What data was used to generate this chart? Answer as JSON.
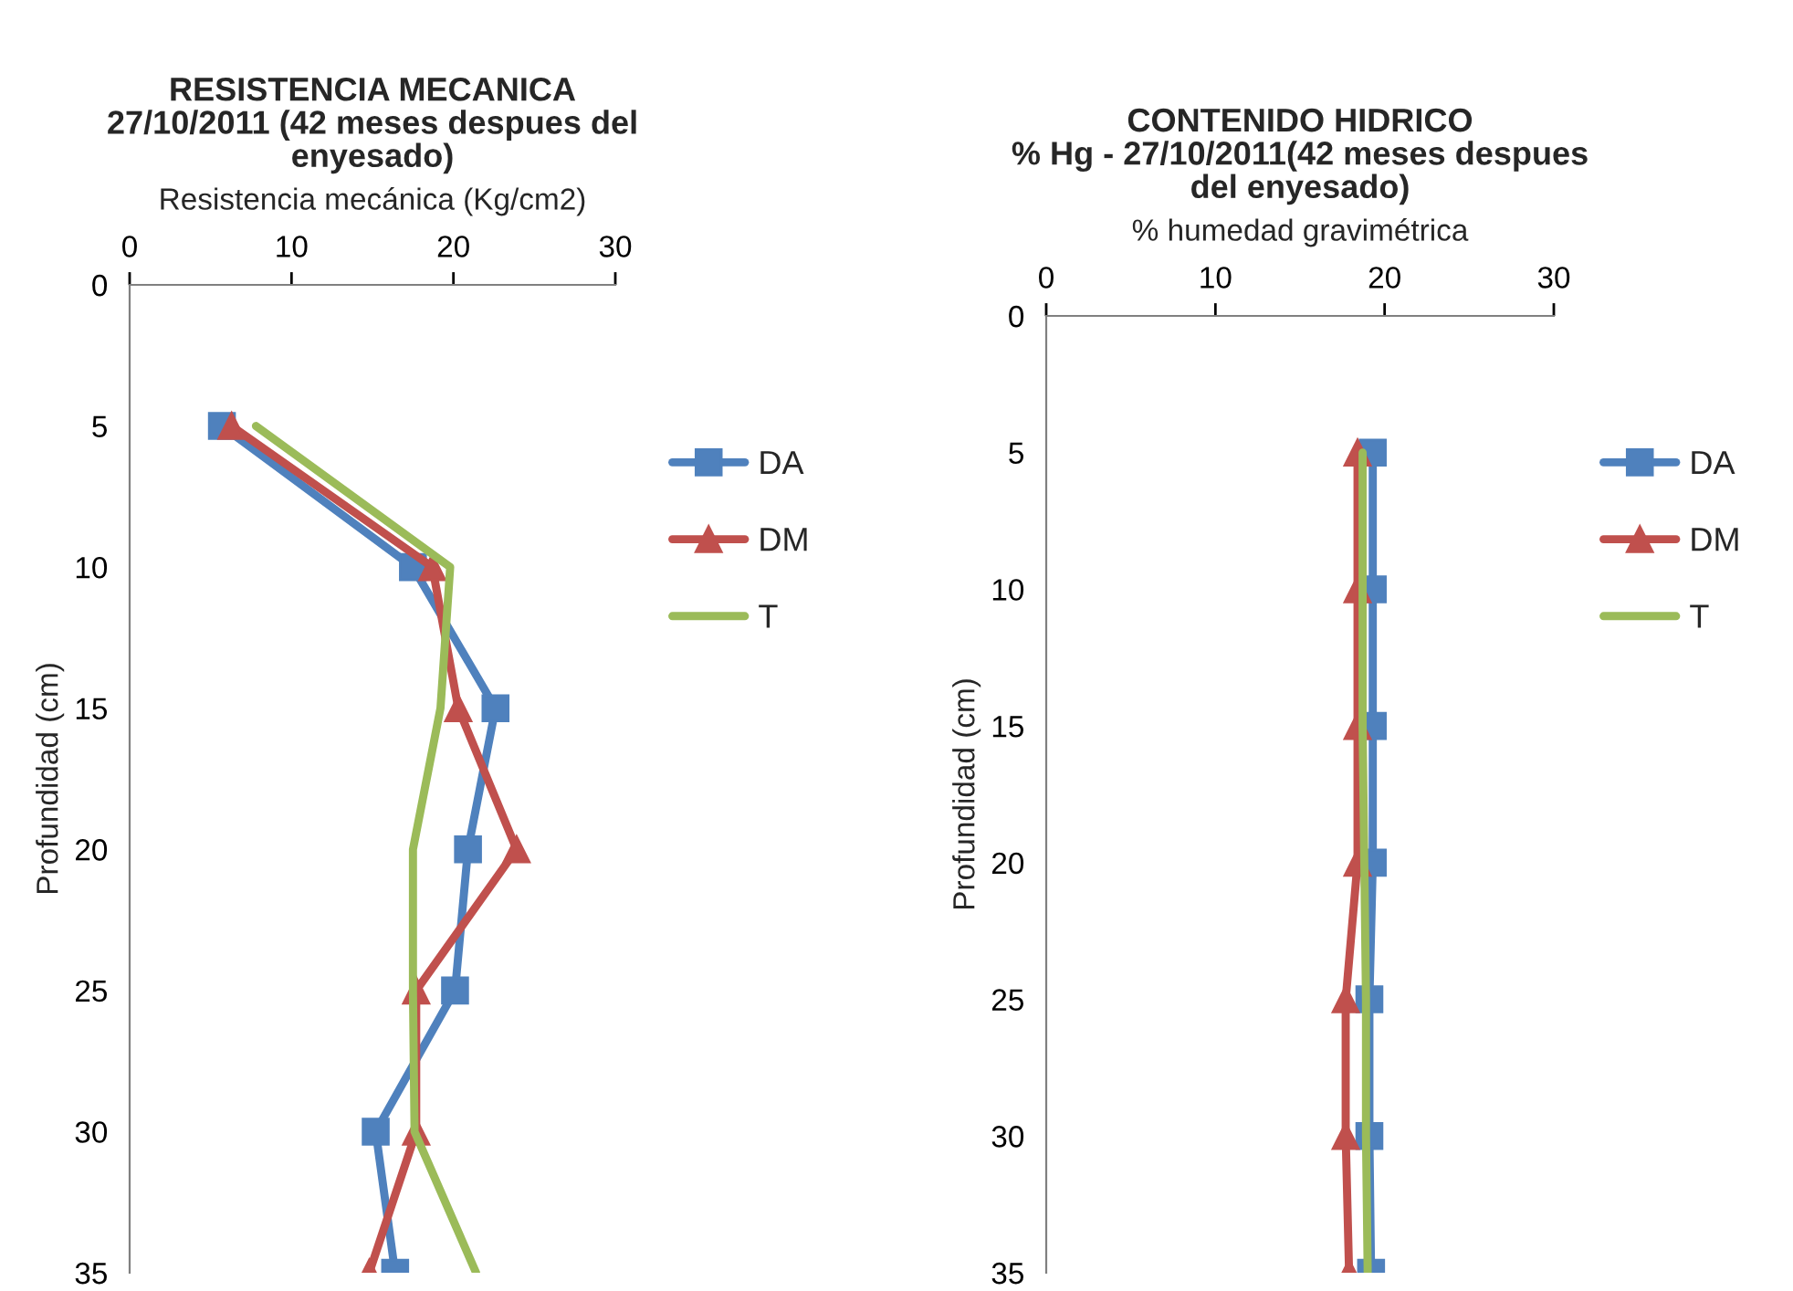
{
  "chart_data": [
    {
      "type": "line",
      "title": "RESISTENCIA MECANICA\n27/10/2011 (42 meses despues del\nenyesado)",
      "xlabel": "Resistencia mecánica (Kg/cm2)",
      "ylabel": "Profundidad (cm)",
      "xlim": [
        0,
        30
      ],
      "xticks": [
        0,
        10,
        20,
        30
      ],
      "ylim": [
        35,
        0
      ],
      "yticks": [
        0,
        5,
        10,
        15,
        20,
        25,
        30,
        35
      ],
      "legend": "right",
      "grid": false,
      "line_style": "solid",
      "series": [
        {
          "name": "DA",
          "color": "#4f81bd",
          "marker": "square",
          "x": [
            5.7,
            17.5,
            22.6,
            20.9,
            20.1,
            15.2,
            16.4
          ],
          "values": [
            5,
            10,
            15,
            20,
            25,
            30,
            35
          ]
        },
        {
          "name": "DM",
          "color": "#c0504d",
          "marker": "triangle",
          "x": [
            6.3,
            18.7,
            20.3,
            23.9,
            17.7,
            17.7,
            14.8
          ],
          "values": [
            5,
            10,
            15,
            20,
            25,
            30,
            35
          ]
        },
        {
          "name": "T",
          "color": "#9bbb59",
          "marker": "none",
          "x": [
            7.8,
            19.8,
            19.2,
            17.5,
            17.5,
            17.6,
            21.4
          ],
          "values": [
            5,
            10,
            15,
            20,
            25,
            30,
            35
          ]
        }
      ]
    },
    {
      "type": "line",
      "title": "CONTENIDO HIDRICO\n% Hg - 27/10/2011(42 meses despues\ndel enyesado)",
      "xlabel": "% humedad gravimétrica",
      "ylabel": "Profundidad (cm)",
      "xlim": [
        0,
        30
      ],
      "xticks": [
        0,
        10,
        20,
        30
      ],
      "ylim": [
        35,
        0
      ],
      "yticks": [
        0,
        5,
        10,
        15,
        20,
        25,
        30,
        35
      ],
      "legend": "right",
      "grid": false,
      "line_style": "solid",
      "series": [
        {
          "name": "DA",
          "color": "#4f81bd",
          "marker": "square",
          "x": [
            19.3,
            19.3,
            19.3,
            19.3,
            19.1,
            19.1,
            19.2
          ],
          "values": [
            5,
            10,
            15,
            20,
            25,
            30,
            35
          ]
        },
        {
          "name": "DM",
          "color": "#c0504d",
          "marker": "triangle",
          "x": [
            18.4,
            18.4,
            18.4,
            18.4,
            17.7,
            17.7,
            17.9
          ],
          "values": [
            5,
            10,
            15,
            20,
            25,
            30,
            35
          ]
        },
        {
          "name": "T",
          "color": "#9bbb59",
          "marker": "none",
          "x": [
            18.7,
            18.7,
            18.7,
            18.8,
            18.9,
            18.9,
            19.0
          ],
          "values": [
            5,
            10,
            15,
            20,
            25,
            30,
            35
          ]
        }
      ]
    }
  ]
}
